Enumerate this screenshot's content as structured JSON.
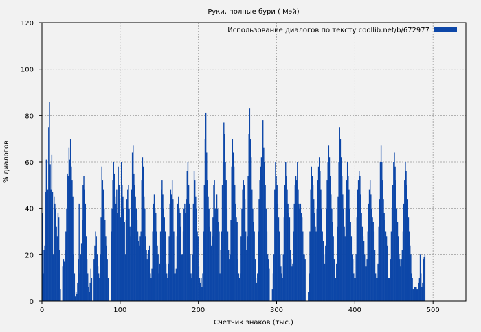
{
  "chart_data": {
    "type": "bar",
    "title": "Руки, полные бури ( Мэй)",
    "xlabel": "Счетчик знаков (тыс.)",
    "ylabel": "% диалогов",
    "xlim": [
      0,
      542
    ],
    "ylim": [
      0,
      120
    ],
    "x_ticks": [
      0,
      100,
      200,
      300,
      400,
      500
    ],
    "y_ticks": [
      0,
      20,
      40,
      60,
      80,
      100,
      120
    ],
    "grid": true,
    "legend_position": "top-right",
    "series": [
      {
        "name": "Использование диалогов по тексту coollib.net/b/672977",
        "color": "#0d47a8",
        "bin_width": 1,
        "values": [
          38,
          12,
          22,
          24,
          47,
          61,
          46,
          48,
          75,
          86,
          59,
          48,
          63,
          47,
          20,
          45,
          42,
          40,
          32,
          28,
          38,
          36,
          22,
          5,
          0,
          0,
          15,
          18,
          17,
          22,
          30,
          40,
          55,
          54,
          66,
          61,
          70,
          58,
          52,
          45,
          20,
          12,
          2,
          4,
          3,
          8,
          18,
          42,
          12,
          20,
          25,
          35,
          50,
          54,
          48,
          42,
          28,
          18,
          12,
          6,
          4,
          8,
          14,
          10,
          0,
          0,
          18,
          24,
          30,
          28,
          20,
          15,
          12,
          10,
          20,
          36,
          58,
          52,
          48,
          40,
          35,
          28,
          24,
          18,
          10,
          0,
          0,
          0,
          30,
          40,
          52,
          60,
          55,
          45,
          42,
          48,
          38,
          58,
          50,
          44,
          36,
          60,
          50,
          45,
          40,
          34,
          20,
          35,
          44,
          48,
          50,
          40,
          32,
          28,
          48,
          64,
          67,
          55,
          50,
          45,
          40,
          35,
          30,
          26,
          24,
          28,
          30,
          52,
          62,
          58,
          45,
          40,
          28,
          22,
          18,
          20,
          22,
          24,
          12,
          10,
          14,
          30,
          42,
          46,
          40,
          38,
          30,
          24,
          20,
          12,
          16,
          30,
          48,
          52,
          46,
          40,
          36,
          30,
          16,
          12,
          10,
          16,
          28,
          42,
          48,
          46,
          52,
          44,
          30,
          12,
          12,
          14,
          28,
          42,
          45,
          40,
          38,
          32,
          20,
          20,
          30,
          40,
          42,
          38,
          44,
          56,
          60,
          50,
          42,
          20,
          12,
          10,
          20,
          42,
          56,
          52,
          45,
          40,
          30,
          28,
          15,
          10,
          8,
          10,
          6,
          12,
          30,
          50,
          70,
          81,
          64,
          52,
          45,
          40,
          32,
          30,
          24,
          28,
          36,
          50,
          52,
          40,
          38,
          46,
          40,
          34,
          30,
          12,
          22,
          30,
          50,
          60,
          77,
          72,
          60,
          52,
          40,
          30,
          22,
          18,
          20,
          35,
          58,
          70,
          64,
          58,
          50,
          42,
          36,
          34,
          18,
          12,
          10,
          12,
          28,
          40,
          48,
          52,
          50,
          44,
          30,
          22,
          28,
          54,
          72,
          83,
          70,
          62,
          48,
          40,
          34,
          30,
          18,
          10,
          8,
          12,
          30,
          44,
          52,
          58,
          62,
          54,
          78,
          66,
          60,
          50,
          40,
          30,
          20,
          18,
          14,
          0,
          0,
          0,
          5,
          12,
          20,
          48,
          60,
          54,
          50,
          42,
          36,
          30,
          20,
          15,
          12,
          10,
          20,
          36,
          50,
          60,
          54,
          48,
          42,
          38,
          36,
          22,
          18,
          15,
          16,
          30,
          42,
          50,
          54,
          52,
          60,
          48,
          42,
          40,
          42,
          38,
          36,
          30,
          20,
          20,
          18,
          0,
          0,
          0,
          4,
          12,
          30,
          48,
          58,
          54,
          50,
          44,
          38,
          32,
          30,
          40,
          52,
          58,
          62,
          56,
          48,
          40,
          30,
          26,
          20,
          16,
          24,
          40,
          52,
          60,
          67,
          62,
          54,
          46,
          40,
          34,
          28,
          18,
          10,
          10,
          16,
          32,
          45,
          60,
          75,
          70,
          62,
          54,
          46,
          40,
          32,
          28,
          40,
          52,
          60,
          54,
          48,
          40,
          34,
          28,
          20,
          18,
          12,
          10,
          10,
          20,
          36,
          48,
          52,
          56,
          54,
          46,
          38,
          32,
          28,
          26,
          20,
          15,
          15,
          18,
          30,
          42,
          48,
          52,
          46,
          40,
          36,
          34,
          30,
          22,
          12,
          10,
          10,
          16,
          32,
          44,
          60,
          67,
          60,
          52,
          44,
          38,
          35,
          30,
          28,
          24,
          10,
          10,
          10,
          18,
          30,
          40,
          50,
          60,
          64,
          58,
          52,
          40,
          34,
          28,
          20,
          18,
          15,
          18,
          22,
          30,
          42,
          52,
          60,
          56,
          50,
          44,
          36,
          30,
          24,
          20,
          12,
          10,
          5,
          5,
          6,
          6,
          6,
          5,
          5,
          8,
          10,
          20,
          12,
          6,
          8,
          18,
          19,
          20
        ]
      }
    ]
  }
}
